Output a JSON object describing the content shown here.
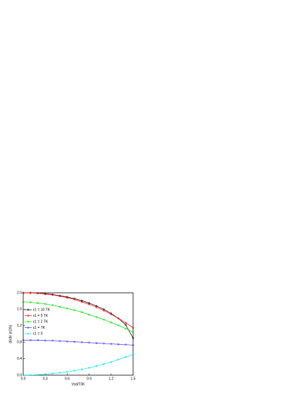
{
  "chart_data": {
    "type": "line",
    "x_label": "Vsd/Γ0K",
    "y_label": "dI/dV (e2/h)",
    "x": [
      0,
      0.1,
      0.2,
      0.3,
      0.4,
      0.5,
      0.6,
      0.7,
      0.8,
      0.9,
      1.0,
      1.1,
      1.2,
      1.3,
      1.4,
      1.5
    ],
    "series": [
      {
        "name": "ε1 = 10 TK",
        "color": "#000000",
        "values": [
          2.0,
          2.0,
          1.99,
          1.98,
          1.96,
          1.93,
          1.9,
          1.86,
          1.81,
          1.75,
          1.68,
          1.6,
          1.5,
          1.38,
          1.22,
          0.9
        ]
      },
      {
        "name": "ε1 = 5 TK",
        "color": "#ff0000",
        "values": [
          2.0,
          2.0,
          1.99,
          1.97,
          1.95,
          1.92,
          1.88,
          1.84,
          1.78,
          1.72,
          1.65,
          1.57,
          1.48,
          1.38,
          1.27,
          1.15
        ]
      },
      {
        "name": "ε1 = 2 TK",
        "color": "#00dd00",
        "values": [
          1.78,
          1.77,
          1.75,
          1.73,
          1.7,
          1.66,
          1.62,
          1.58,
          1.53,
          1.47,
          1.41,
          1.35,
          1.28,
          1.21,
          1.13,
          1.05
        ]
      },
      {
        "name": "ε1 = TK",
        "color": "#3333ff",
        "values": [
          0.85,
          0.85,
          0.85,
          0.84,
          0.84,
          0.83,
          0.82,
          0.81,
          0.8,
          0.79,
          0.78,
          0.77,
          0.76,
          0.75,
          0.74,
          0.73
        ]
      },
      {
        "name": "ε1 = 0",
        "color": "#00e5e5",
        "values": [
          0,
          0.002,
          0.01,
          0.02,
          0.04,
          0.06,
          0.08,
          0.11,
          0.14,
          0.18,
          0.22,
          0.27,
          0.32,
          0.38,
          0.44,
          0.5
        ]
      }
    ],
    "xlim": [
      0,
      1.5
    ],
    "xticks": [
      {
        "value": 0,
        "label": "0.0"
      },
      0.3,
      0.6,
      0.9,
      1.2,
      1.5
    ],
    "ylim": [
      0,
      2
    ],
    "yticks": [
      {
        "value": 0,
        "label": "0.0"
      },
      0.4,
      0.8,
      1.2,
      1.6,
      {
        "value": 2,
        "label": "2.0"
      }
    ],
    "legend": "upper left"
  }
}
